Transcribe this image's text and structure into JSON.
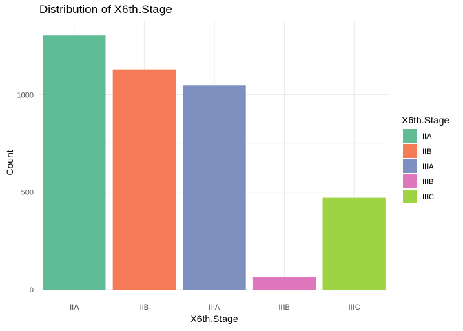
{
  "chart_data": {
    "type": "bar",
    "title": "Distribution of X6th.Stage",
    "xlabel": "X6th.Stage",
    "ylabel": "Count",
    "categories": [
      "IIA",
      "IIB",
      "IIIA",
      "IIIB",
      "IIIC"
    ],
    "values": [
      1305,
      1130,
      1050,
      67,
      472
    ],
    "colors": [
      "#5FBC95",
      "#F47B55",
      "#7E90C0",
      "#E076BC",
      "#9ED444"
    ],
    "ylim": [
      0,
      1380
    ],
    "yticks": [
      0,
      500,
      1000
    ],
    "ytick_labels": [
      "0",
      "500",
      "1000"
    ],
    "grid": true,
    "legend": {
      "title": "X6th.Stage",
      "position": "right",
      "entries": [
        "IIA",
        "IIB",
        "IIIA",
        "IIIB",
        "IIIC"
      ]
    }
  }
}
